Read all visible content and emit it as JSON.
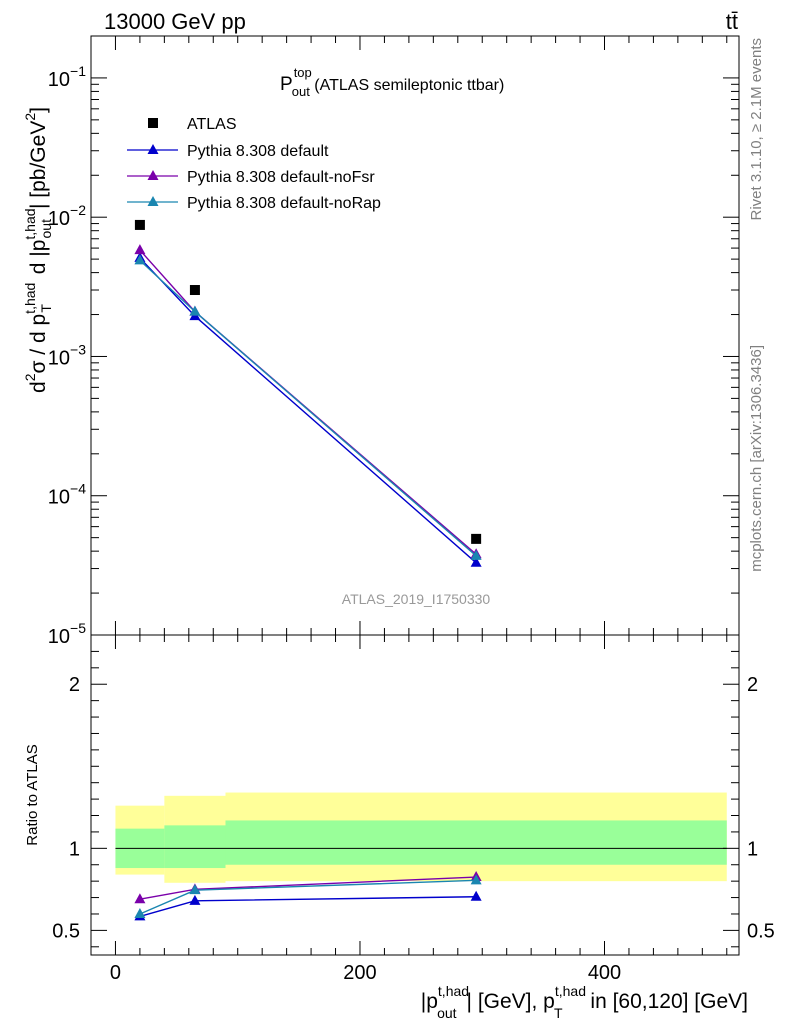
{
  "header": {
    "energy": "13000 GeV pp",
    "process": "tt̄",
    "side_top": "Rivet 3.1.10, ≥ 2.1M events",
    "side_bottom": "mcplots.cern.ch [arXiv:1306.3436]"
  },
  "chart_data": {
    "type": "line",
    "title": {
      "base": "P",
      "sup": "top",
      "sub": "out",
      "rest": " (ATLAS semileptonic ttbar)"
    },
    "watermark": "ATLAS_2019_I1750330",
    "xlabel": {
      "p1": "|p",
      "p1_sup": "t,had",
      "p1_sub": "out",
      "p2": "| [GeV], p",
      "p2_sup": "t,had",
      "p2_sub": "T",
      "p3": " in [60,120] [GeV]"
    },
    "ylabel_main": {
      "a": "d",
      "a_sup": "2",
      "b": "σ / d p",
      "b_sup": "t,had",
      "b_sub": "T",
      "c": " d |p",
      "c_sup": "t,had",
      "c_sub": "out",
      "d": "| [pb/GeV",
      "d_sup": "2",
      "e": "]"
    },
    "ylabel_ratio": "Ratio to ATLAS",
    "xlim": [
      -20,
      510
    ],
    "ylim_main": [
      1e-05,
      0.2
    ],
    "ylim_ratio": [
      0.35,
      2.3
    ],
    "log_y_main": true,
    "x_ticks": [
      {
        "value": 0,
        "label": "0"
      },
      {
        "value": 200,
        "label": "200"
      },
      {
        "value": 400,
        "label": "400"
      }
    ],
    "y_ticks_main": [
      {
        "value": 1e-05,
        "base": "10",
        "exp": "−5"
      },
      {
        "value": 0.0001,
        "base": "10",
        "exp": "−4"
      },
      {
        "value": 0.001,
        "base": "10",
        "exp": "−3"
      },
      {
        "value": 0.01,
        "base": "10",
        "exp": "−2"
      },
      {
        "value": 0.1,
        "base": "10",
        "exp": "−1"
      }
    ],
    "y_ticks_ratio": [
      {
        "value": 0.5,
        "label": "0.5"
      },
      {
        "value": 1,
        "label": "1"
      },
      {
        "value": 2,
        "label": "2"
      }
    ],
    "bin_edges": [
      0,
      40,
      90,
      500
    ],
    "data": {
      "name": "ATLAS",
      "color": "#000000",
      "x": [
        20,
        65,
        295
      ],
      "y": [
        0.0088,
        0.003,
        4.9e-05
      ]
    },
    "series": [
      {
        "name": "Pythia 8.308 default",
        "color": "#0000cc",
        "x": [
          20,
          65,
          295
        ],
        "y": [
          0.0051,
          0.00195,
          3.3e-05
        ],
        "ratio": [
          0.585,
          0.68,
          0.705
        ]
      },
      {
        "name": "Pythia 8.308 default-noFsr",
        "color": "#7a00aa",
        "x": [
          20,
          65,
          295
        ],
        "y": [
          0.0058,
          0.0021,
          3.8e-05
        ],
        "ratio": [
          0.69,
          0.75,
          0.825
        ]
      },
      {
        "name": "Pythia 8.308 default-noRap",
        "color": "#1a86b0",
        "x": [
          20,
          65,
          295
        ],
        "y": [
          0.0049,
          0.0021,
          3.7e-05
        ],
        "ratio": [
          0.6,
          0.745,
          0.805
        ]
      }
    ],
    "bands": {
      "green_color": "#99ff99",
      "yellow_color": "#ffff99",
      "green": [
        [
          0.88,
          1.12
        ],
        [
          0.88,
          1.14
        ],
        [
          0.9,
          1.17
        ]
      ],
      "yellow": [
        [
          0.84,
          1.26
        ],
        [
          0.79,
          1.32
        ],
        [
          0.8,
          1.34
        ]
      ]
    }
  }
}
